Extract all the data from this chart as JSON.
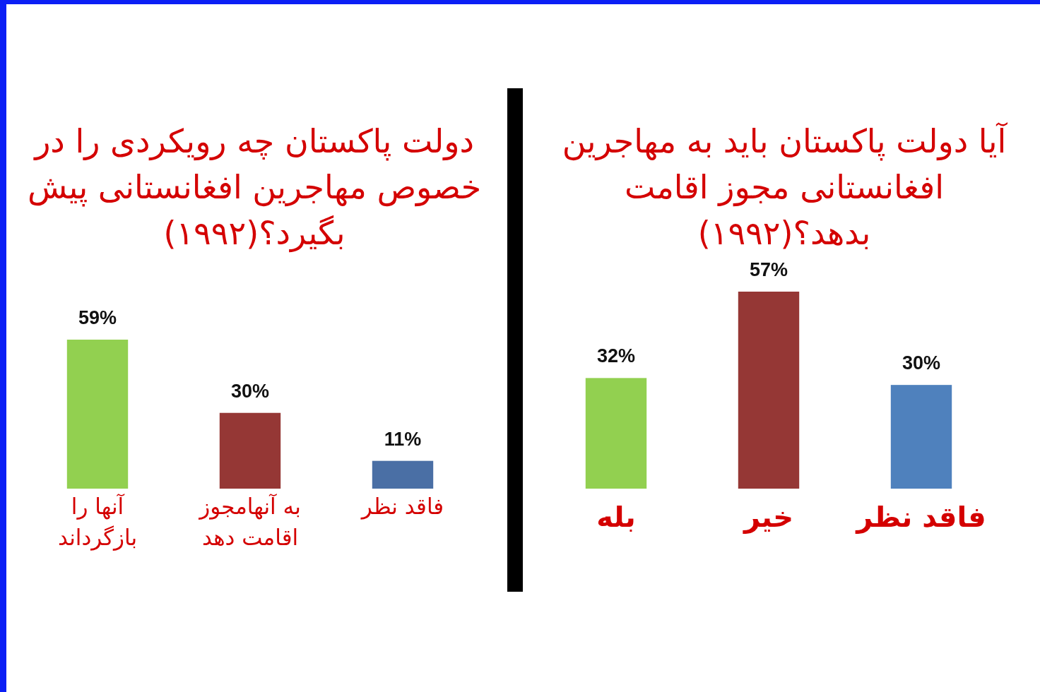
{
  "chart_data": [
    {
      "type": "bar",
      "title": "دولت پاکستان چه رویکردی را در خصوص مهاجرین افغانستانی پیش بگیرد؟(۱۹۹۲)",
      "categories": [
        "آنها را بازگرداند",
        "به آنهامجوز اقامت دهد",
        "فاقد نظر"
      ],
      "values": [
        59,
        30,
        11
      ],
      "colors": [
        "#92d050",
        "#953735",
        "#4a6fa5"
      ],
      "value_labels": [
        "59%",
        "30%",
        "11%"
      ],
      "tick_labels": "x"
    },
    {
      "type": "bar",
      "title": "آیا دولت پاکستان باید به مهاجرین افغانستانی مجوز اقامت بدهد؟(۱۹۹۲)",
      "categories": [
        "بله",
        "خیر",
        "فاقد نظر"
      ],
      "values": [
        32,
        57,
        30
      ],
      "colors": [
        "#92d050",
        "#953735",
        "#4f81bd"
      ],
      "value_labels": [
        "32%",
        "57%",
        "30%"
      ],
      "tick_labels": "x"
    }
  ]
}
